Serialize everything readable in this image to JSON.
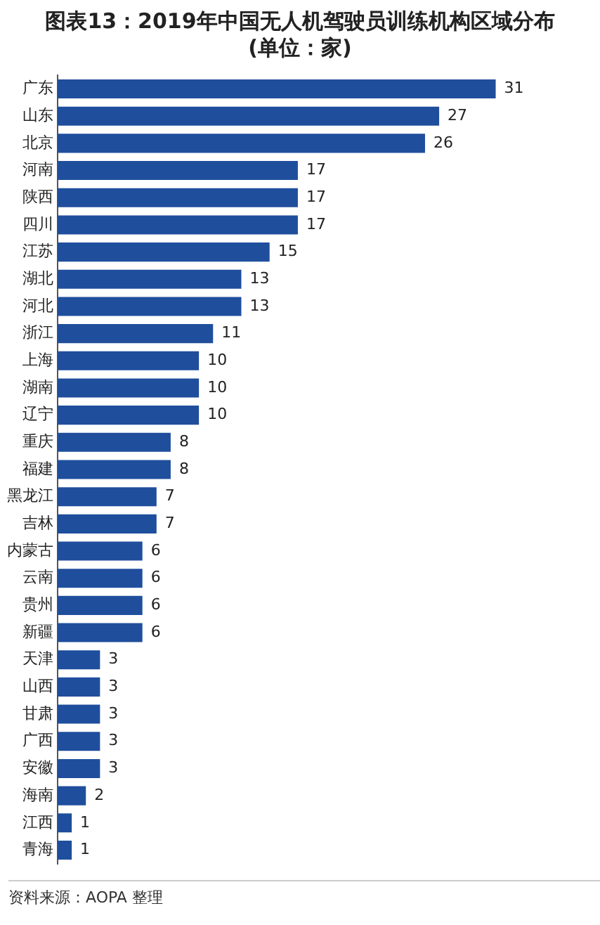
{
  "chart_data": {
    "type": "bar",
    "orientation": "horizontal",
    "title": "图表13：2019年中国无人机驾驶员训练机构区域分布",
    "subtitle": "(单位：家)",
    "categories": [
      "广东",
      "山东",
      "北京",
      "河南",
      "陕西",
      "四川",
      "江苏",
      "湖北",
      "河北",
      "浙江",
      "上海",
      "湖南",
      "辽宁",
      "重庆",
      "福建",
      "黑龙江",
      "吉林",
      "内蒙古",
      "云南",
      "贵州",
      "新疆",
      "天津",
      "山西",
      "甘肃",
      "广西",
      "安徽",
      "海南",
      "江西",
      "青海"
    ],
    "values": [
      31,
      27,
      26,
      17,
      17,
      17,
      15,
      13,
      13,
      11,
      10,
      10,
      10,
      8,
      8,
      7,
      7,
      6,
      6,
      6,
      6,
      3,
      3,
      3,
      3,
      3,
      2,
      1,
      1
    ],
    "color": "#1f4e9c",
    "data_labels": true,
    "annotations": [
      "资料来源：AOPA 整理"
    ]
  }
}
